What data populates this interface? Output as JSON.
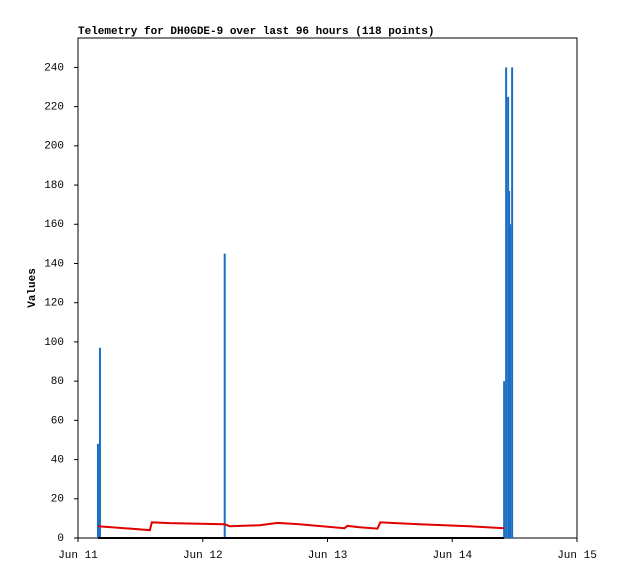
{
  "chart_data": {
    "type": "line",
    "title": "Telemetry for DH0GDE-9 over last 96 hours (118 points)",
    "y_label": "Values",
    "xlim": [
      0,
      4
    ],
    "xticks": [
      {
        "value": 0,
        "label": "Jun 11"
      },
      {
        "value": 1,
        "label": "Jun 12"
      },
      {
        "value": 2,
        "label": "Jun 13"
      },
      {
        "value": 3,
        "label": "Jun 14"
      },
      {
        "value": 4,
        "label": "Jun 15"
      }
    ],
    "ylim": [
      0,
      255
    ],
    "yticks": [
      0,
      20,
      40,
      60,
      80,
      100,
      120,
      140,
      160,
      180,
      200,
      220,
      240
    ],
    "series": [
      {
        "style": "impulse",
        "color": "#1a6fc4",
        "x": [
          0.16,
          0.176,
          1.176,
          3.416,
          3.432,
          3.448,
          3.456,
          3.464,
          3.48
        ],
        "values": [
          48,
          97,
          145,
          80,
          240,
          225,
          177,
          160,
          240
        ]
      },
      {
        "style": "line",
        "color": "#e00000",
        "x": [
          0.16,
          0.576,
          0.592,
          0.736,
          1.176,
          1.216,
          1.456,
          1.6,
          1.776,
          2.136,
          2.16,
          2.256,
          2.4,
          2.424,
          2.736,
          3.136,
          3.416
        ],
        "values": [
          6,
          4,
          8,
          7.6,
          7,
          6,
          6.5,
          7.7,
          7,
          5,
          6.2,
          5.5,
          4.8,
          8,
          7,
          6,
          5
        ]
      },
      {
        "style": "line",
        "color": "#000000",
        "x": [
          0.16,
          3.416
        ],
        "values": [
          0,
          0
        ]
      }
    ]
  }
}
